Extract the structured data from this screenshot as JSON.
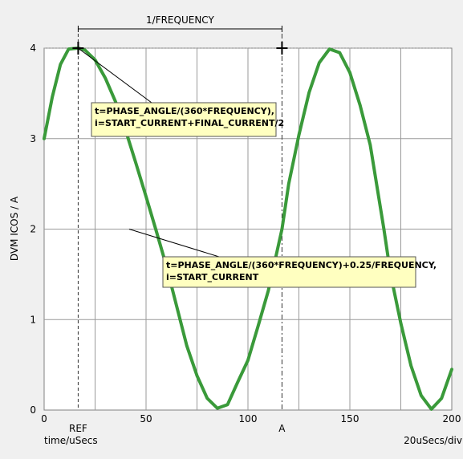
{
  "chart_data": {
    "type": "line",
    "title": "",
    "xlabel": "time/uSecs",
    "ylabel": "DVM ICOS / A",
    "scale_label": "20uSecs/div",
    "xlim": [
      0,
      200
    ],
    "ylim": [
      0,
      4
    ],
    "x_ticks": [
      0,
      50,
      100,
      150,
      200
    ],
    "y_ticks": [
      0,
      1,
      2,
      3,
      4
    ],
    "grid": true,
    "legend": "none",
    "series": [
      {
        "color": "#3a9a3a",
        "x": [
          0,
          4,
          8,
          12,
          16.7,
          20,
          25,
          30,
          35,
          40,
          45,
          50,
          55,
          60,
          66.7,
          70,
          75,
          80,
          85,
          90,
          95,
          100,
          105,
          110,
          116.7,
          120,
          125,
          130,
          135,
          140,
          145,
          150,
          155,
          160,
          166.7,
          170,
          175,
          180,
          185,
          190,
          195,
          200
        ],
        "y": [
          3.0,
          3.46,
          3.82,
          3.99,
          4.0,
          3.98,
          3.87,
          3.67,
          3.41,
          3.09,
          2.73,
          2.36,
          1.98,
          1.59,
          1.0,
          0.71,
          0.38,
          0.13,
          0.02,
          0.06,
          0.31,
          0.55,
          0.93,
          1.32,
          2.0,
          2.5,
          3.04,
          3.51,
          3.84,
          3.99,
          3.95,
          3.73,
          3.37,
          2.93,
          2.0,
          1.5,
          0.96,
          0.49,
          0.16,
          0.01,
          0.13,
          0.45
        ]
      }
    ],
    "cursors": [
      {
        "label": "REF",
        "x": 16.7,
        "y": 4
      },
      {
        "label": "A",
        "x": 116.7,
        "y": 4
      }
    ],
    "period_label": "1/FREQUENCY",
    "annotations": [
      {
        "lines": [
          "t=PHASE_ANGLE/(360*FREQUENCY),",
          "i=START_CURRENT+FINAL_CURRENT/2"
        ],
        "target_x": 16.7,
        "target_y": 4
      },
      {
        "lines": [
          "t=PHASE_ANGLE/(360*FREQUENCY)+0.25/FREQUENCY,",
          "i=START_CURRENT"
        ],
        "target_x": 41.7,
        "target_y": 2
      }
    ]
  }
}
